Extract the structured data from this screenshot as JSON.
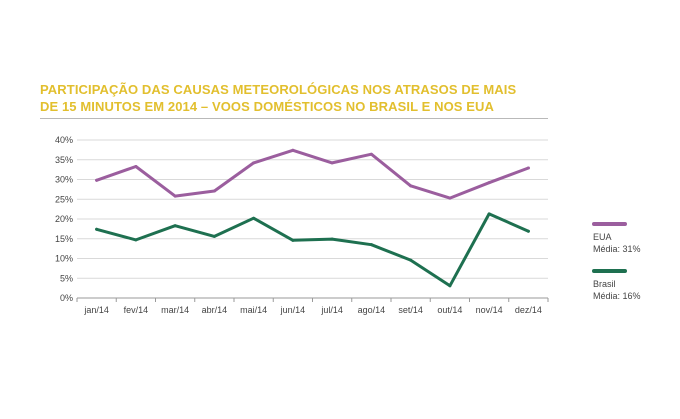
{
  "title_line1": "PARTICIPAÇÃO DAS CAUSAS METEOROLÓGICAS NOS ATRASOS DE MAIS",
  "title_line2": "DE 15 MINUTOS EM 2014 – VOOS DOMÉSTICOS NO BRASIL E NOS EUA",
  "chart_data": {
    "type": "line",
    "title": "PARTICIPAÇÃO DAS CAUSAS METEOROLÓGICAS NOS ATRASOS DE MAIS DE 15 MINUTOS EM 2014 – VOOS DOMÉSTICOS NO BRASIL E NOS EUA",
    "xlabel": "",
    "ylabel": "",
    "ylim": [
      0,
      40
    ],
    "y_ticks": [
      "0%",
      "5%",
      "10%",
      "15%",
      "20%",
      "25%",
      "30%",
      "35%",
      "40%"
    ],
    "grid": true,
    "legend_position": "right",
    "categories": [
      "jan/14",
      "fev/14",
      "mar/14",
      "abr/14",
      "mai/14",
      "jun/14",
      "jul/14",
      "ago/14",
      "set/14",
      "out/14",
      "nov/14",
      "dez/14"
    ],
    "series": [
      {
        "name": "EUA",
        "legend_note": "Média: 31%",
        "color": "#9b5e9e",
        "values": [
          29.8,
          33.3,
          25.8,
          27.1,
          34.2,
          37.4,
          34.2,
          36.4,
          28.4,
          25.3,
          29.2,
          32.9
        ]
      },
      {
        "name": "Brasil",
        "legend_note": "Média: 16%",
        "color": "#1e7050",
        "values": [
          17.4,
          14.7,
          18.3,
          15.6,
          20.2,
          14.6,
          14.9,
          13.5,
          9.6,
          3.1,
          21.3,
          16.9
        ]
      }
    ]
  }
}
